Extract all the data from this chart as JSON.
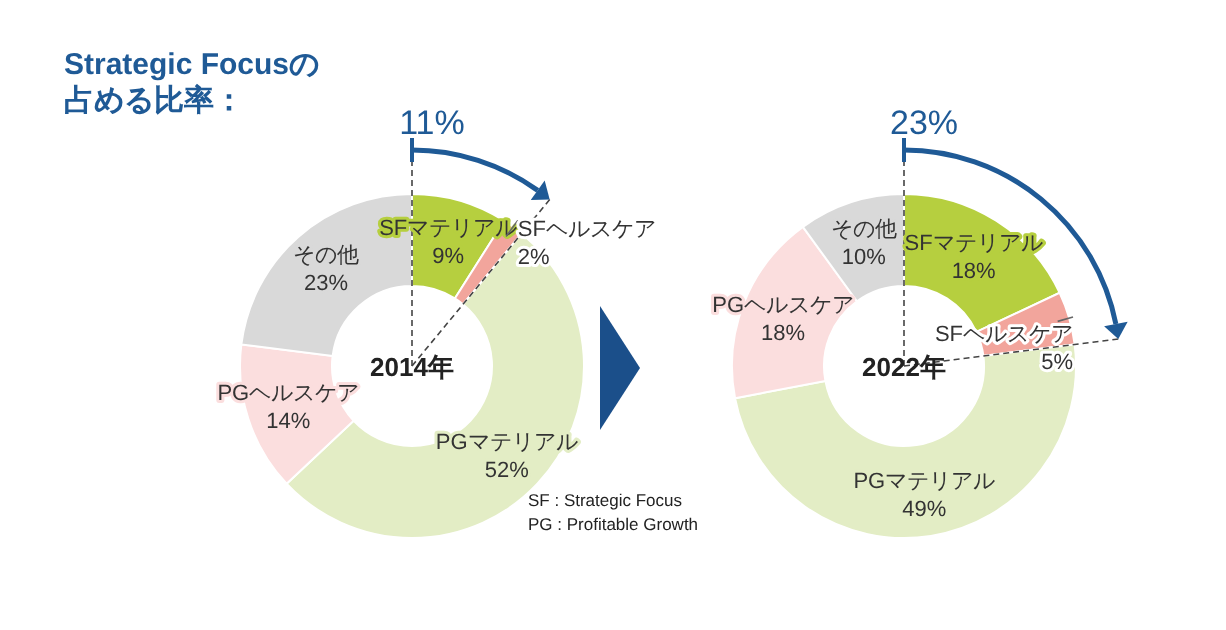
{
  "chart_data": [
    {
      "type": "donut",
      "title": "Strategic Focusの占める比率：",
      "categories": [
        "SFマテリアル",
        "SFヘルスケア",
        "PGマテリアル",
        "PGヘルスケア",
        "その他"
      ],
      "values": [
        9,
        2,
        52,
        14,
        23
      ],
      "value_labels": [
        "9%",
        "2%",
        "52%",
        "14%",
        "23%"
      ],
      "colors": [
        "#b6cf3f",
        "#f2a59c",
        "#e3edc5",
        "#fbdede",
        "#d9d9d9"
      ],
      "annotations": [
        "11%",
        "2014年",
        "SF : Strategic Focus",
        "PG : Profitable Growth"
      ]
    },
    {
      "type": "donut",
      "categories": [
        "SFマテリアル",
        "SFヘルスケア",
        "PGマテリアル",
        "PGヘルスケア",
        "その他"
      ],
      "values": [
        18,
        5,
        49,
        18,
        10
      ],
      "value_labels": [
        "18%",
        "5%",
        "49%",
        "18%",
        "10%"
      ],
      "colors": [
        "#b6cf3f",
        "#f2a59c",
        "#e3edc5",
        "#fbdede",
        "#d9d9d9"
      ],
      "annotations": [
        "23%",
        "2022年"
      ]
    }
  ]
}
